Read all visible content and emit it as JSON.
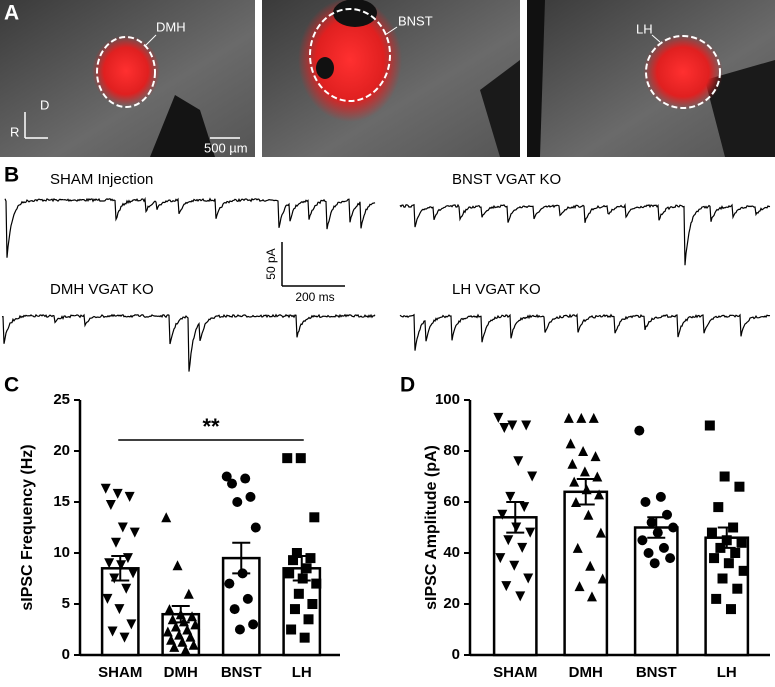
{
  "panel_labels": [
    "A",
    "B",
    "C",
    "D"
  ],
  "panel_a": {
    "regions": [
      "DMH",
      "BNST",
      "LH"
    ],
    "axis_dorsal": "D",
    "axis_rostral": "R",
    "scale_bar": "500 µm"
  },
  "panel_b": {
    "traces": [
      "SHAM Injection",
      "BNST VGAT KO",
      "DMH VGAT KO",
      "LH VGAT KO"
    ],
    "scale_y": "50 pA",
    "scale_x": "200 ms"
  },
  "chart_data": [
    {
      "type": "bar",
      "y_label": "sIPSC Frequency (Hz)",
      "categories": [
        "SHAM",
        "DMH",
        "BNST",
        "LH"
      ],
      "values": [
        8.5,
        4.0,
        9.5,
        8.5
      ],
      "errors": [
        1.2,
        0.8,
        1.5,
        1.2
      ],
      "markers": [
        "triangle-down",
        "triangle-up",
        "circle",
        "square"
      ],
      "points": [
        [
          16.3,
          15.8,
          15.5,
          14.7,
          12.5,
          12,
          11,
          9.5,
          9,
          8.8,
          8,
          7.5,
          6.5,
          5.5,
          4.5,
          3,
          2.3,
          1.7
        ],
        [
          13.5,
          8.8,
          6,
          4.5,
          4,
          3.8,
          3.5,
          3.3,
          3,
          2.8,
          2.5,
          2.3,
          2,
          1.8,
          1.5,
          1.3,
          1,
          0.8,
          0.5
        ],
        [
          17.5,
          17.3,
          16.8,
          15.5,
          15,
          12.5,
          8,
          7,
          5.5,
          4.5,
          3,
          2.5
        ],
        [
          19.3,
          19.3,
          13.5,
          10,
          9.5,
          9.3,
          8.5,
          8,
          7.5,
          7,
          6,
          5,
          4.5,
          3.5,
          2.5,
          1.7
        ]
      ],
      "ylim": [
        0,
        25
      ],
      "yticks": [
        0,
        5,
        10,
        15,
        20,
        25
      ],
      "annotations": [
        {
          "text": "**",
          "from": "SHAM",
          "to": "LH"
        }
      ]
    },
    {
      "type": "bar",
      "y_label": "sIPSC Amplitude (pA)",
      "categories": [
        "SHAM",
        "DMH",
        "BNST",
        "LH"
      ],
      "values": [
        54,
        64,
        50,
        46
      ],
      "errors": [
        6,
        5,
        4,
        4
      ],
      "markers": [
        "triangle-down",
        "triangle-up",
        "circle",
        "square"
      ],
      "points": [
        [
          93,
          90,
          90,
          89,
          76,
          70,
          62,
          58,
          55,
          50,
          48,
          45,
          42,
          38,
          35,
          30,
          27,
          23
        ],
        [
          93,
          93,
          93,
          83,
          80,
          78,
          75,
          72,
          70,
          68,
          65,
          63,
          60,
          55,
          48,
          42,
          35,
          30,
          27,
          23
        ],
        [
          88,
          62,
          60,
          55,
          52,
          50,
          48,
          45,
          42,
          40,
          38,
          36
        ],
        [
          90,
          70,
          66,
          58,
          50,
          48,
          45,
          44,
          42,
          40,
          38,
          36,
          33,
          30,
          26,
          22,
          18
        ]
      ],
      "ylim": [
        0,
        100
      ],
      "yticks": [
        0,
        20,
        40,
        60,
        80,
        100
      ]
    }
  ]
}
